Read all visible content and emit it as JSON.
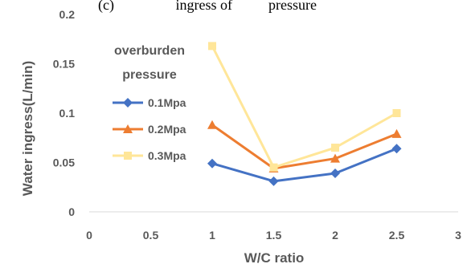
{
  "caption_fragment": "(c)                 ingress of          pressure",
  "chart_data": {
    "type": "line",
    "title": "",
    "xlabel": "W/C ratio",
    "ylabel": "Water ingress(L/min)",
    "xlim": [
      0,
      3
    ],
    "ylim": [
      0,
      0.2
    ],
    "xticks": [
      0,
      0.5,
      1,
      1.5,
      2,
      2.5,
      3
    ],
    "xtick_labels": [
      "0",
      "0.5",
      "1",
      "1.5",
      "2",
      "2.5",
      "3"
    ],
    "yticks": [
      0,
      0.05,
      0.1,
      0.15,
      0.2
    ],
    "ytick_labels": [
      "0",
      "0.05",
      "0.1",
      "0.15",
      "0.2"
    ],
    "grid": false,
    "legend": {
      "title_lines": [
        "overburden",
        "pressure"
      ],
      "placement": "left"
    },
    "x": [
      1,
      1.5,
      2,
      2.5
    ],
    "series": [
      {
        "name": "0.1Mpa",
        "values": [
          0.049,
          0.031,
          0.039,
          0.064
        ],
        "color": "#4472C4",
        "marker": "diamond"
      },
      {
        "name": "0.2Mpa",
        "values": [
          0.088,
          0.044,
          0.054,
          0.079
        ],
        "color": "#ED7D31",
        "marker": "triangle"
      },
      {
        "name": "0.3Mpa",
        "values": [
          0.168,
          0.045,
          0.065,
          0.1
        ],
        "color": "#FFE699",
        "marker": "square"
      }
    ]
  }
}
